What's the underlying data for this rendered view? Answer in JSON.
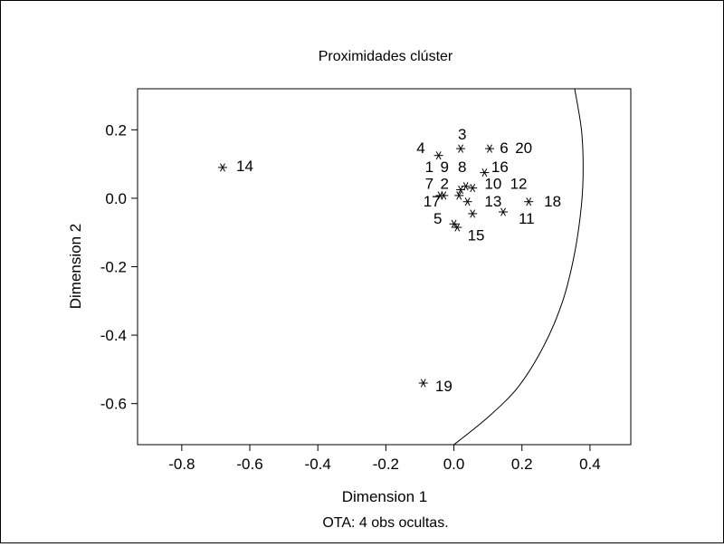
{
  "chart_data": {
    "type": "scatter",
    "title": "Proximidades clúster",
    "xlabel": "Dimension 1",
    "ylabel": "Dimension 2",
    "footnote": "OTA: 4 obs ocultas.",
    "xlim": [
      -0.93,
      0.52
    ],
    "ylim": [
      -0.72,
      0.32
    ],
    "xticks": [
      -0.8,
      -0.6,
      -0.4,
      -0.2,
      0.0,
      0.2,
      0.4
    ],
    "xtick_labels": [
      "-0.8",
      "-0.6",
      "-0.4",
      "-0.2",
      "0.0",
      "0.2",
      "0.4"
    ],
    "yticks": [
      0.2,
      0.0,
      -0.2,
      -0.4,
      -0.6
    ],
    "ytick_labels": [
      "0.2",
      "0.0",
      "-0.2",
      "-0.4",
      "-0.6"
    ],
    "grid": false,
    "marker": "asterisk",
    "points": [
      {
        "x": -0.68,
        "y": 0.09
      },
      {
        "x": -0.045,
        "y": 0.125
      },
      {
        "x": 0.02,
        "y": 0.145
      },
      {
        "x": 0.105,
        "y": 0.145
      },
      {
        "x": 0.09,
        "y": 0.075
      },
      {
        "x": 0.035,
        "y": 0.035
      },
      {
        "x": 0.055,
        "y": 0.03
      },
      {
        "x": 0.02,
        "y": 0.025
      },
      {
        "x": -0.04,
        "y": 0.008
      },
      {
        "x": -0.03,
        "y": 0.008
      },
      {
        "x": 0.015,
        "y": 0.008
      },
      {
        "x": 0.04,
        "y": -0.01
      },
      {
        "x": 0.22,
        "y": -0.01
      },
      {
        "x": 0.145,
        "y": -0.04
      },
      {
        "x": 0.055,
        "y": -0.045
      },
      {
        "x": 0.0,
        "y": -0.075
      },
      {
        "x": 0.01,
        "y": -0.085
      },
      {
        "x": -0.09,
        "y": -0.54
      }
    ],
    "point_labels": [
      {
        "text": "14",
        "x": -0.64,
        "y": 0.095
      },
      {
        "text": "19",
        "x": -0.055,
        "y": -0.548
      },
      {
        "text": "3",
        "x": 0.012,
        "y": 0.188
      },
      {
        "text": "4",
        "x": -0.11,
        "y": 0.148
      },
      {
        "text": "6",
        "x": 0.135,
        "y": 0.148
      },
      {
        "text": "20",
        "x": 0.18,
        "y": 0.148
      },
      {
        "text": "1",
        "x": -0.085,
        "y": 0.093
      },
      {
        "text": "9",
        "x": -0.04,
        "y": 0.093
      },
      {
        "text": "8",
        "x": 0.012,
        "y": 0.093
      },
      {
        "text": "16",
        "x": 0.11,
        "y": 0.093
      },
      {
        "text": "7",
        "x": -0.085,
        "y": 0.043
      },
      {
        "text": "2",
        "x": -0.04,
        "y": 0.043
      },
      {
        "text": "10",
        "x": 0.09,
        "y": 0.043
      },
      {
        "text": "12",
        "x": 0.165,
        "y": 0.043
      },
      {
        "text": "17",
        "x": -0.09,
        "y": -0.008
      },
      {
        "text": "13",
        "x": 0.09,
        "y": -0.008
      },
      {
        "text": "18",
        "x": 0.265,
        "y": -0.008
      },
      {
        "text": "5",
        "x": -0.06,
        "y": -0.058
      },
      {
        "text": "11",
        "x": 0.19,
        "y": -0.058
      },
      {
        "text": "15",
        "x": 0.04,
        "y": -0.108
      }
    ],
    "curve": [
      {
        "x": 0.355,
        "y": 0.32
      },
      {
        "x": 0.375,
        "y": 0.2
      },
      {
        "x": 0.38,
        "y": 0.09
      },
      {
        "x": 0.375,
        "y": -0.02
      },
      {
        "x": 0.355,
        "y": -0.16
      },
      {
        "x": 0.32,
        "y": -0.3
      },
      {
        "x": 0.265,
        "y": -0.43
      },
      {
        "x": 0.19,
        "y": -0.55
      },
      {
        "x": 0.1,
        "y": -0.64
      },
      {
        "x": 0.0,
        "y": -0.72
      }
    ]
  }
}
